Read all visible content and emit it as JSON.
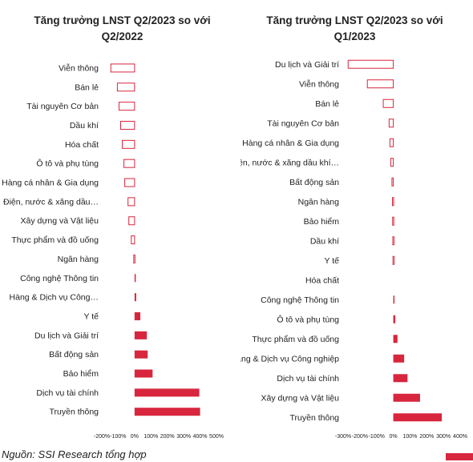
{
  "chart_data": [
    {
      "type": "bar",
      "orientation": "horizontal",
      "title": "Tăng trưởng LNST Q2/2023 so với Q2/2022",
      "categories": [
        "Viễn thông",
        "Bán lẻ",
        "Tài nguyên Cơ bản",
        "Dầu khí",
        "Hóa chất",
        "Ô tô và phụ tùng",
        "Hàng cá nhân & Gia dụng",
        "Điện, nước & xăng dầu…",
        "Xây dựng và Vật liệu",
        "Thực phẩm và đồ uống",
        "Ngân hàng",
        "Công nghệ Thông tin",
        "Hàng & Dịch vụ Công…",
        "Y tế",
        "Du lịch và Giải trí",
        "Bất động sản",
        "Bảo hiểm",
        "Dịch vụ tài chính",
        "Truyền thông"
      ],
      "values": [
        -145,
        -105,
        -95,
        -85,
        -75,
        -65,
        -60,
        -40,
        -35,
        -20,
        -5,
        5,
        10,
        35,
        75,
        80,
        110,
        395,
        400
      ],
      "xlim": [
        -200,
        500
      ],
      "xticks": [
        "-200%",
        "-100%",
        "0%",
        "100%",
        "200%",
        "300%",
        "400%",
        "500%"
      ],
      "colors": {
        "positive": "#d7263d",
        "negative_outline": "#d7263d"
      }
    },
    {
      "type": "bar",
      "orientation": "horizontal",
      "title": "Tăng trưởng LNST Q2/2023 so với Q1/2023",
      "categories": [
        "Du lịch và Giải trí",
        "Viễn thông",
        "Bán lẻ",
        "Tài nguyên Cơ bản",
        "Hàng cá nhân & Gia dụng",
        "Điện, nước & xăng dầu khí…",
        "Bất động sản",
        "Ngân hàng",
        "Bảo hiểm",
        "Dầu khí",
        "Y tế",
        "Hóa chất",
        "Công nghệ Thông tin",
        "Ô tô và phụ tùng",
        "Thực phẩm và đồ uống",
        "Hàng & Dịch vụ Công nghiệp",
        "Dịch vụ tài chính",
        "Xây dựng và Vật liệu",
        "Truyền thông"
      ],
      "values": [
        -270,
        -155,
        -60,
        -25,
        -20,
        -15,
        -8,
        -5,
        -4,
        -3,
        -2,
        0,
        5,
        12,
        25,
        65,
        85,
        160,
        290
      ],
      "xlim": [
        -300,
        400
      ],
      "xticks": [
        "-300%",
        "-200%",
        "-100%",
        "0%",
        "100%",
        "200%",
        "300%",
        "400%"
      ],
      "colors": {
        "positive": "#d7263d",
        "negative_outline": "#d7263d"
      }
    }
  ],
  "source_note": "Nguồn: SSI Research tổng hợp"
}
